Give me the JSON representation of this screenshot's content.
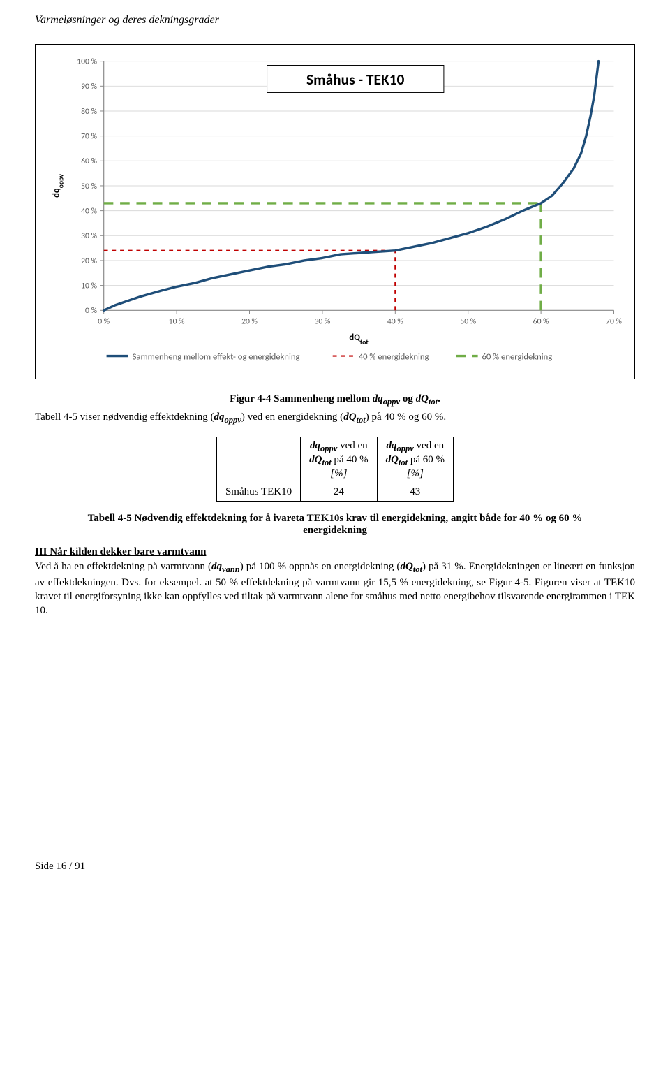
{
  "header": {
    "title": "Varmeløsninger og deres dekningsgrader"
  },
  "chart": {
    "type": "line",
    "title": "Småhus - TEK10",
    "title_fontsize": 22,
    "title_color": "#000000",
    "title_bg": "#ffffff",
    "title_border": "#000000",
    "xlabel": "dQtot",
    "ylabel": "dqoppv",
    "label_fontsize": 12,
    "label_color": "#000000",
    "xlim": [
      0,
      70
    ],
    "xtick_step": 10,
    "ylim": [
      0,
      100
    ],
    "ytick_step": 10,
    "x_ticks": [
      "0 %",
      "10 %",
      "20 %",
      "30 %",
      "40 %",
      "50 %",
      "60 %",
      "70 %"
    ],
    "y_ticks": [
      "0 %",
      "10 %",
      "20 %",
      "30 %",
      "40 %",
      "50 %",
      "60 %",
      "70 %",
      "80 %",
      "90 %",
      "100 %"
    ],
    "background_color": "#ffffff",
    "plot_bg": "#ffffff",
    "grid_color": "#d9d9d9",
    "axis_color": "#888888",
    "tick_fontsize": 12,
    "tick_color": "#595959",
    "series_main": {
      "name": "Sammenheng mellom effekt- og energidekning",
      "color": "#1f4e79",
      "line_width": 3.5,
      "dash": "none",
      "points": [
        [
          0.0,
          0.0
        ],
        [
          1.5,
          2.0
        ],
        [
          3.0,
          3.5
        ],
        [
          5.0,
          5.5
        ],
        [
          8.0,
          8.0
        ],
        [
          10.0,
          9.5
        ],
        [
          12.5,
          11.0
        ],
        [
          15.0,
          13.0
        ],
        [
          17.5,
          14.5
        ],
        [
          20.0,
          16.0
        ],
        [
          22.5,
          17.5
        ],
        [
          25.0,
          18.5
        ],
        [
          27.5,
          20.0
        ],
        [
          30.0,
          21.0
        ],
        [
          32.5,
          22.5
        ],
        [
          35.0,
          23.0
        ],
        [
          37.5,
          23.5
        ],
        [
          40.0,
          24.0
        ],
        [
          42.5,
          25.5
        ],
        [
          45.0,
          27.0
        ],
        [
          47.5,
          29.0
        ],
        [
          50.0,
          31.0
        ],
        [
          52.5,
          33.5
        ],
        [
          55.0,
          36.5
        ],
        [
          57.5,
          40.0
        ],
        [
          60.0,
          43.0
        ],
        [
          61.5,
          46.0
        ],
        [
          63.0,
          51.0
        ],
        [
          64.5,
          57.0
        ],
        [
          65.5,
          63.0
        ],
        [
          66.2,
          70.0
        ],
        [
          66.8,
          78.0
        ],
        [
          67.3,
          86.0
        ],
        [
          67.6,
          93.0
        ],
        [
          67.9,
          100.0
        ]
      ]
    },
    "ref_lines": {
      "red": {
        "name": "40 % energidekning",
        "color": "#c00000",
        "line_width": 2.2,
        "dash": "6,6",
        "x": 40,
        "y": 24
      },
      "green": {
        "name": "60 % energidekning",
        "color": "#70ad47",
        "line_width": 3.5,
        "dash": "14,10",
        "x": 60,
        "y": 43
      }
    },
    "legend": {
      "position": "bottom",
      "fontsize": 13,
      "text_color": "#595959",
      "items": [
        {
          "label": "Sammenheng mellom effekt- og energidekning",
          "color": "#1f4e79",
          "dash": "none",
          "width": 3.5
        },
        {
          "label": "40 % energidekning",
          "color": "#c00000",
          "dash": "6,6",
          "width": 2.2
        },
        {
          "label": "60 % energidekning",
          "color": "#70ad47",
          "dash": "14,10",
          "width": 3.5
        }
      ]
    }
  },
  "fig_caption": {
    "prefix": "Figur 4-4 Sammenheng mellom ",
    "var1": "dqoppv",
    "mid": " og ",
    "var2": "dQtot",
    "suffix": "."
  },
  "intro_text": {
    "a": "Tabell 4-5 viser nødvendig effektdekning (",
    "v1": "dqoppv",
    "b": ") ved en energidekning (",
    "v2": "dQtot",
    "c": ") på 40 % og 60 %."
  },
  "table": {
    "col1_l1": "dqoppv",
    "col1_l2": " ved en",
    "col1_l3": "dQtot",
    "col1_l4": " på 40 %",
    "col1_l5": "[%]",
    "col2_l1": "dqoppv",
    "col2_l2": " ved en",
    "col2_l3": "dQtot",
    "col2_l4": " på 60 %",
    "col2_l5": "[%]",
    "row_label": "Småhus TEK10",
    "v40": "24",
    "v60": "43"
  },
  "tab_caption": "Tabell 4-5 Nødvendig effektdekning for å ivareta TEK10s krav til energidekning, angitt både for 40 % og 60 % energidekning",
  "section3": {
    "heading": "III Når kilden dekker bare varmtvann",
    "p_a": "Ved å ha en effektdekning på varmtvann (",
    "v1": "dqvann",
    "p_b": ") på 100 % oppnås en energidekning (",
    "v2": "dQtot",
    "p_c": ") på 31 %. Energidekningen er lineært en funksjon av effektdekningen. Dvs. for eksempel. at 50 % effektdekning på varmtvann gir 15,5 % energidekning, se Figur 4-5. Figuren viser at TEK10 kravet til energiforsyning ikke kan oppfylles ved tiltak på varmtvann alene for småhus med netto energibehov tilsvarende energirammen i TEK 10."
  },
  "footer": {
    "text": "Side 16 / 91"
  }
}
